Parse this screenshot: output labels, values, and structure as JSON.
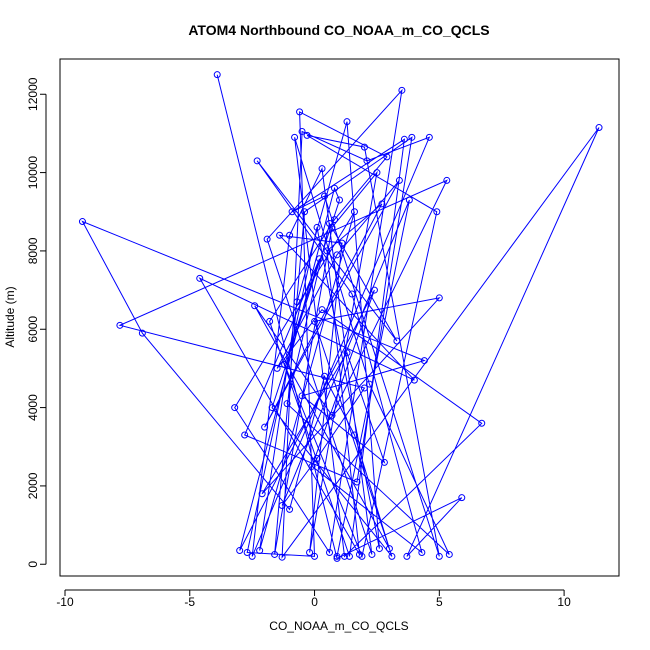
{
  "chart_data": {
    "type": "line",
    "title": "ATOM4 Northbound CO_NOAA_m_CO_QCLS",
    "xlabel": "CO_NOAA_m_CO_QCLS",
    "ylabel": "Altitude (m)",
    "xlim": [
      -10.2,
      12.2
    ],
    "ylim": [
      -300,
      12900
    ],
    "xticks": [
      -10,
      -5,
      0,
      5,
      10
    ],
    "xtick_labels": [
      "-10",
      "-5",
      "0",
      "5",
      "10"
    ],
    "yticks": [
      0,
      2000,
      4000,
      6000,
      8000,
      10000,
      12000
    ],
    "ytick_labels": [
      "0",
      "2000",
      "4000",
      "6000",
      "8000",
      "10000",
      "12000"
    ],
    "grid": false,
    "color": "#0000ff",
    "marker": "open-circle",
    "series": [
      {
        "x": [
          -3.9,
          0.9,
          5.9,
          3.7,
          11.4,
          -1.3,
          -0.5,
          2.1,
          4.6,
          -2.5,
          -1.0,
          0.3,
          2.3,
          -1.9,
          3.5,
          0.6,
          -3.2,
          1.6,
          -2.2,
          -0.7,
          1.3,
          2.6,
          0.1,
          -2.7,
          0.0,
          -0.6,
          2.9,
          0.8,
          -1.8,
          1.4,
          3.6,
          -0.9,
          0.4,
          5.0,
          2.0,
          -0.3,
          4.9,
          1.9,
          -1.2,
          0.2,
          -2.8,
          1.7,
          3.9,
          -0.4,
          -1.6,
          0.7,
          2.5,
          -0.2,
          1.1,
          -1.4,
          4.0,
          -4.6,
          1.8,
          0.5,
          2.7,
          -2.0,
          3.4,
          0.9,
          -1.5,
          0.3,
          6.7,
          1.2,
          -0.8,
          2.2,
          5.4,
          -1.1,
          0.6,
          3.3,
          -2.3,
          1.5,
          4.3,
          -0.1,
          2.4,
          -3.0,
          0.8,
          1.0,
          -1.7,
          3.1,
          0.0,
          5.0,
          -2.1,
          1.3,
          2.8,
          -0.5,
          4.4,
          -9.3,
          -6.9,
          -1.0,
          0.4,
          1.6,
          3.0,
          -2.4,
          0.7,
          5.3,
          -7.8,
          2.0,
          0.1,
          -1.3,
          3.8,
          0.9
        ],
        "y": [
          12500,
          150,
          1700,
          200,
          11150,
          180,
          11050,
          10300,
          10900,
          200,
          8400,
          10100,
          250,
          8300,
          12100,
          300,
          4000,
          9000,
          350,
          6700,
          11300,
          400,
          8600,
          300,
          200,
          11550,
          10400,
          8800,
          6200,
          200,
          10850,
          9000,
          9400,
          200,
          10650,
          10950,
          9000,
          200,
          5100,
          7800,
          3300,
          2100,
          10900,
          9000,
          250,
          8600,
          10000,
          300,
          8200,
          8400,
          4700,
          7300,
          250,
          8000,
          9200,
          3500,
          9800,
          7900,
          5000,
          6500,
          3600,
          200,
          10900,
          4600,
          250,
          4100,
          8700,
          5700,
          10300,
          6900,
          300,
          2500,
          7000,
          350,
          9600,
          9300,
          4000,
          200,
          6200,
          6800,
          1800,
          5400,
          2600,
          4300,
          5200,
          8750,
          5900,
          1400,
          4800,
          3300,
          400,
          6600,
          3800,
          9800,
          6100,
          4500,
          2700,
          1500,
          9300,
          200
        ]
      }
    ]
  }
}
